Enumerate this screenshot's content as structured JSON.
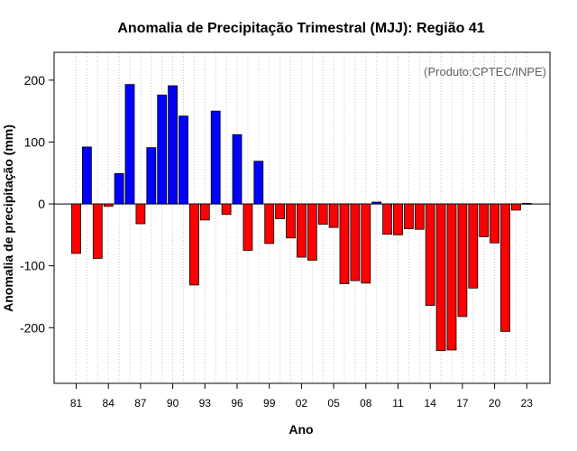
{
  "chart_data": {
    "type": "bar",
    "title": "Anomalia de Precipitação Trimestral (MJJ): Região 41",
    "xlabel": "Ano",
    "ylabel": "Anomalia de precipitação (mm)",
    "annotation": "(Produto:CPTEC/INPE)",
    "ylim": [
      -290,
      245
    ],
    "yticks": [
      -200,
      -100,
      0,
      100,
      200
    ],
    "xtick_labels": [
      "81",
      "84",
      "87",
      "90",
      "93",
      "96",
      "99",
      "02",
      "05",
      "08",
      "11",
      "14",
      "17",
      "20",
      "23"
    ],
    "grid": "vertical dotted lines",
    "positive_color": "#0000ff",
    "negative_color": "#ff0000",
    "years": [
      1981,
      1982,
      1983,
      1984,
      1985,
      1986,
      1987,
      1988,
      1989,
      1990,
      1991,
      1992,
      1993,
      1994,
      1995,
      1996,
      1997,
      1998,
      1999,
      2000,
      2001,
      2002,
      2003,
      2004,
      2005,
      2006,
      2007,
      2008,
      2009,
      2010,
      2011,
      2012,
      2013,
      2014,
      2015,
      2016,
      2017,
      2018,
      2019,
      2020,
      2021,
      2022,
      2023
    ],
    "categories": [
      "81",
      "82",
      "83",
      "84",
      "85",
      "86",
      "87",
      "88",
      "89",
      "90",
      "91",
      "92",
      "93",
      "94",
      "95",
      "96",
      "97",
      "98",
      "99",
      "00",
      "01",
      "02",
      "03",
      "04",
      "05",
      "06",
      "07",
      "08",
      "09",
      "10",
      "11",
      "12",
      "13",
      "14",
      "15",
      "16",
      "17",
      "18",
      "19",
      "20",
      "21",
      "22",
      "23"
    ],
    "values": [
      -80,
      92,
      -88,
      -4,
      49,
      193,
      -32,
      91,
      176,
      191,
      142,
      -131,
      -26,
      150,
      -17,
      112,
      -75,
      69,
      -64,
      -24,
      -55,
      -86,
      -91,
      -33,
      -38,
      -129,
      -124,
      -128,
      3,
      -49,
      -50,
      -40,
      -41,
      -164,
      -237,
      -236,
      -182,
      -136,
      -53,
      -63,
      -206,
      -10,
      1
    ]
  }
}
